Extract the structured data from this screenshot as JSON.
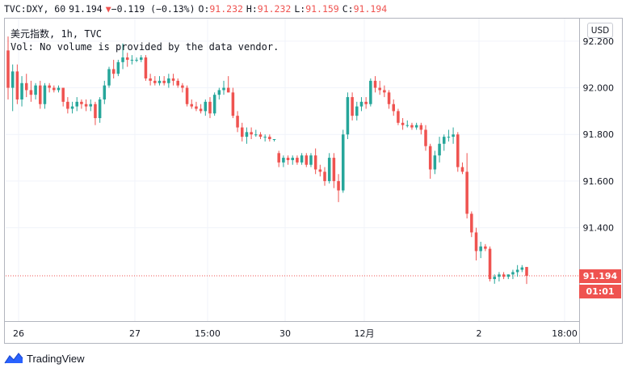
{
  "header": {
    "symbol": "TVC:DXY, 60",
    "last": "91.194",
    "arrow": "▼",
    "change": "−0.119 (−0.13%)",
    "o_label": "O:",
    "o_value": "91.232",
    "h_label": "H:",
    "h_value": "91.232",
    "l_label": "L:",
    "l_value": "91.159",
    "c_label": "C:",
    "c_value": "91.194"
  },
  "title": "美元指数, 1h, TVC",
  "volume_note": "Vol: No volume is provided by the data vendor.",
  "currency": "USD",
  "current_price_label": "91.194",
  "countdown_label": "01:01",
  "logo_text": "TradingView",
  "colors": {
    "up": "#26a69a",
    "down": "#ef5350",
    "grid": "#f0f3fa",
    "axis_text": "#131722",
    "price_line": "#ef5350",
    "logo": "#2962ff"
  },
  "chart_data": {
    "type": "candlestick",
    "title": "美元指数, 1h, TVC",
    "ylim": [
      91.0,
      92.3
    ],
    "y_ticks": [
      "92.200",
      "92.000",
      "91.800",
      "91.600",
      "91.400"
    ],
    "x_ticks": [
      "26",
      "27",
      "15:00",
      "30",
      "12月",
      "2",
      "18:00"
    ],
    "last_price": 91.194,
    "candles": [
      [
        92.16,
        92.22,
        91.95,
        92.0
      ],
      [
        92.0,
        92.1,
        91.9,
        92.07
      ],
      [
        92.07,
        92.1,
        91.93,
        91.95
      ],
      [
        91.95,
        92.05,
        91.92,
        92.02
      ],
      [
        92.02,
        92.06,
        91.96,
        91.99
      ],
      [
        91.99,
        92.03,
        91.94,
        91.97
      ],
      [
        91.97,
        92.02,
        91.95,
        92.01
      ],
      [
        92.01,
        92.03,
        91.91,
        91.93
      ],
      [
        91.93,
        92.02,
        91.91,
        92.01
      ],
      [
        92.01,
        92.02,
        91.98,
        92.0
      ],
      [
        92.0,
        92.01,
        91.98,
        91.99
      ],
      [
        91.99,
        92.01,
        91.98,
        92.0
      ],
      [
        92.0,
        92.0,
        91.92,
        91.94
      ],
      [
        91.94,
        91.96,
        91.89,
        91.91
      ],
      [
        91.91,
        91.94,
        91.89,
        91.92
      ],
      [
        91.92,
        91.96,
        91.9,
        91.94
      ],
      [
        91.94,
        91.95,
        91.91,
        91.93
      ],
      [
        91.93,
        91.95,
        91.9,
        91.92
      ],
      [
        91.92,
        91.95,
        91.9,
        91.93
      ],
      [
        91.93,
        91.94,
        91.84,
        91.87
      ],
      [
        91.87,
        91.96,
        91.85,
        91.95
      ],
      [
        91.95,
        92.03,
        91.93,
        92.01
      ],
      [
        92.01,
        92.09,
        92.0,
        92.08
      ],
      [
        92.08,
        92.12,
        92.04,
        92.06
      ],
      [
        92.06,
        92.12,
        92.05,
        92.11
      ],
      [
        92.11,
        92.19,
        92.08,
        92.13
      ],
      [
        92.13,
        92.15,
        92.09,
        92.12
      ],
      [
        92.12,
        92.14,
        92.1,
        92.12
      ],
      [
        92.12,
        92.13,
        92.11,
        92.12
      ],
      [
        92.12,
        92.14,
        92.11,
        92.13
      ],
      [
        92.13,
        92.14,
        92.03,
        92.04
      ],
      [
        92.04,
        92.06,
        92.01,
        92.03
      ],
      [
        92.03,
        92.05,
        92.01,
        92.02
      ],
      [
        92.02,
        92.05,
        92.01,
        92.03
      ],
      [
        92.03,
        92.05,
        92.01,
        92.02
      ],
      [
        92.02,
        92.06,
        92.0,
        92.04
      ],
      [
        92.04,
        92.06,
        92.01,
        92.03
      ],
      [
        92.03,
        92.04,
        92.0,
        92.01
      ],
      [
        92.01,
        92.02,
        91.98,
        92.0
      ],
      [
        92.0,
        92.01,
        91.92,
        91.93
      ],
      [
        91.93,
        91.95,
        91.91,
        91.92
      ],
      [
        91.92,
        91.94,
        91.9,
        91.91
      ],
      [
        91.91,
        91.93,
        91.89,
        91.9
      ],
      [
        91.9,
        91.95,
        91.88,
        91.94
      ],
      [
        91.94,
        91.96,
        91.87,
        91.89
      ],
      [
        91.89,
        91.98,
        91.88,
        91.97
      ],
      [
        91.97,
        92.0,
        91.95,
        91.99
      ],
      [
        91.99,
        92.03,
        91.97,
        92.0
      ],
      [
        92.0,
        92.05,
        91.98,
        91.98
      ],
      [
        91.98,
        92.0,
        91.87,
        91.88
      ],
      [
        91.88,
        91.9,
        91.81,
        91.83
      ],
      [
        91.83,
        91.85,
        91.77,
        91.79
      ],
      [
        91.79,
        91.83,
        91.76,
        91.81
      ],
      [
        91.81,
        91.83,
        91.78,
        91.8
      ],
      [
        91.8,
        91.82,
        91.79,
        91.8
      ],
      [
        91.8,
        91.81,
        91.78,
        91.79
      ],
      [
        91.79,
        91.8,
        91.77,
        91.79
      ],
      [
        91.79,
        91.8,
        91.77,
        91.78
      ],
      [
        91.78,
        91.78,
        91.77,
        91.78
      ],
      [
        91.72,
        91.73,
        91.66,
        91.68
      ],
      [
        91.68,
        91.71,
        91.66,
        91.7
      ],
      [
        91.7,
        91.71,
        91.67,
        91.69
      ],
      [
        91.69,
        91.71,
        91.67,
        91.7
      ],
      [
        91.7,
        91.71,
        91.67,
        91.68
      ],
      [
        91.68,
        91.72,
        91.67,
        91.71
      ],
      [
        91.71,
        91.72,
        91.66,
        91.67
      ],
      [
        91.67,
        91.72,
        91.66,
        91.71
      ],
      [
        91.71,
        91.74,
        91.63,
        91.65
      ],
      [
        91.65,
        91.67,
        91.62,
        91.64
      ],
      [
        91.64,
        91.66,
        91.58,
        91.6
      ],
      [
        91.6,
        91.72,
        91.59,
        91.7
      ],
      [
        91.7,
        91.72,
        91.57,
        91.6
      ],
      [
        91.6,
        91.63,
        91.51,
        91.56
      ],
      [
        91.56,
        91.82,
        91.55,
        91.8
      ],
      [
        91.8,
        91.98,
        91.78,
        91.96
      ],
      [
        91.96,
        91.98,
        91.86,
        91.88
      ],
      [
        91.88,
        91.94,
        91.86,
        91.92
      ],
      [
        91.92,
        91.96,
        91.9,
        91.94
      ],
      [
        91.94,
        91.96,
        91.91,
        91.93
      ],
      [
        91.93,
        92.04,
        91.92,
        92.03
      ],
      [
        92.03,
        92.05,
        91.98,
        92.0
      ],
      [
        92.0,
        92.03,
        91.97,
        91.99
      ],
      [
        91.99,
        92.01,
        91.96,
        91.98
      ],
      [
        91.98,
        91.99,
        91.91,
        91.93
      ],
      [
        91.93,
        91.95,
        91.88,
        91.9
      ],
      [
        91.9,
        91.91,
        91.84,
        91.85
      ],
      [
        91.85,
        91.87,
        91.82,
        91.84
      ],
      [
        91.84,
        91.86,
        91.83,
        91.84
      ],
      [
        91.84,
        91.85,
        91.82,
        91.83
      ],
      [
        91.83,
        91.85,
        91.82,
        91.84
      ],
      [
        91.84,
        91.85,
        91.8,
        91.82
      ],
      [
        91.82,
        91.84,
        91.73,
        91.75
      ],
      [
        91.75,
        91.76,
        91.61,
        91.65
      ],
      [
        91.65,
        91.73,
        91.63,
        91.71
      ],
      [
        91.71,
        91.79,
        91.68,
        91.76
      ],
      [
        91.76,
        91.8,
        91.73,
        91.79
      ],
      [
        91.79,
        91.82,
        91.77,
        91.79
      ],
      [
        91.79,
        91.83,
        91.76,
        91.8
      ],
      [
        91.8,
        91.81,
        91.64,
        91.66
      ],
      [
        91.66,
        91.68,
        91.63,
        91.64
      ],
      [
        91.64,
        91.72,
        91.44,
        91.46
      ],
      [
        91.46,
        91.47,
        91.36,
        91.38
      ],
      [
        91.38,
        91.4,
        91.26,
        91.3
      ],
      [
        91.3,
        91.34,
        91.27,
        91.32
      ],
      [
        91.32,
        91.33,
        91.3,
        91.31
      ],
      [
        91.31,
        91.32,
        91.17,
        91.18
      ],
      [
        91.18,
        91.2,
        91.16,
        91.19
      ],
      [
        91.19,
        91.21,
        91.17,
        91.2
      ],
      [
        91.2,
        91.21,
        91.18,
        91.19
      ],
      [
        91.19,
        91.2,
        91.18,
        91.2
      ],
      [
        91.2,
        91.22,
        91.18,
        91.21
      ],
      [
        91.21,
        91.24,
        91.19,
        91.22
      ],
      [
        91.22,
        91.24,
        91.21,
        91.23
      ],
      [
        91.232,
        91.232,
        91.159,
        91.194
      ]
    ]
  }
}
